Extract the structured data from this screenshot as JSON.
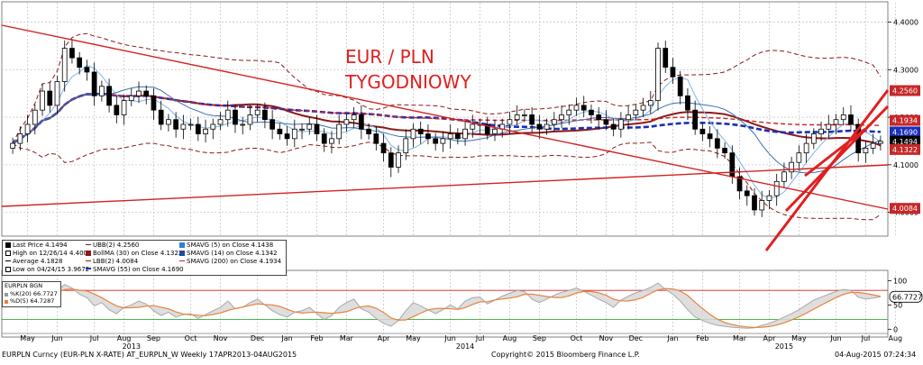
{
  "chart_data": {
    "type": "candlestick",
    "title": "EUR / PLN",
    "subtitle": "TYGODNIOWY",
    "x_months": [
      {
        "label": "May",
        "week": 2
      },
      {
        "label": "Jun",
        "week": 6
      },
      {
        "label": "Jul",
        "week": 11
      },
      {
        "label": "Aug",
        "week": 15
      },
      {
        "label": "Sep",
        "week": 19
      },
      {
        "label": "Oct",
        "week": 24
      },
      {
        "label": "Nov",
        "week": 28
      },
      {
        "label": "Dec",
        "week": 33
      },
      {
        "label": "Jan",
        "week": 37
      },
      {
        "label": "Feb",
        "week": 41
      },
      {
        "label": "Mar",
        "week": 45
      },
      {
        "label": "Apr",
        "week": 50
      },
      {
        "label": "May",
        "week": 54
      },
      {
        "label": "Jun",
        "week": 59
      },
      {
        "label": "Jul",
        "week": 63
      },
      {
        "label": "Aug",
        "week": 67
      },
      {
        "label": "Sep",
        "week": 71
      },
      {
        "label": "Oct",
        "week": 76
      },
      {
        "label": "Nov",
        "week": 80
      },
      {
        "label": "Dec",
        "week": 84
      },
      {
        "label": "Jan",
        "week": 89
      },
      {
        "label": "Feb",
        "week": 93
      },
      {
        "label": "Mar",
        "week": 98
      },
      {
        "label": "Apr",
        "week": 102
      },
      {
        "label": "May",
        "week": 106
      },
      {
        "label": "Jun",
        "week": 111
      },
      {
        "label": "Jul",
        "week": 115
      },
      {
        "label": "Aug",
        "week": 119
      }
    ],
    "x_years": [
      {
        "label": "2013",
        "week": 16
      },
      {
        "label": "2014",
        "week": 61
      },
      {
        "label": "2015",
        "week": 104
      }
    ],
    "y_price_range": [
      3.95,
      4.42
    ],
    "y_price_ticks": [
      4.0,
      4.1,
      4.2,
      4.3,
      4.4
    ],
    "y_price_tick_labels": [
      "4.0000",
      "4.1000",
      "4.2000",
      "4.3000",
      "4.4000"
    ],
    "y_osc_range": [
      -5,
      110
    ],
    "y_osc_ticks": [
      0,
      50,
      100
    ],
    "y_osc_tick_labels": [
      "0",
      "50",
      "100"
    ],
    "closes": [
      4.145,
      4.165,
      4.185,
      4.215,
      4.255,
      4.225,
      4.275,
      4.345,
      4.325,
      4.305,
      4.295,
      4.245,
      4.265,
      4.225,
      4.205,
      4.235,
      4.245,
      4.255,
      4.245,
      4.215,
      4.185,
      4.195,
      4.175,
      4.185,
      4.185,
      4.165,
      4.175,
      4.185,
      4.195,
      4.215,
      4.185,
      4.185,
      4.205,
      4.215,
      4.195,
      4.175,
      4.165,
      4.155,
      4.175,
      4.175,
      4.185,
      4.165,
      4.145,
      4.155,
      4.185,
      4.195,
      4.205,
      4.175,
      4.165,
      4.145,
      4.125,
      4.095,
      4.125,
      4.155,
      4.175,
      4.165,
      4.155,
      4.145,
      4.155,
      4.165,
      4.155,
      4.175,
      4.185,
      4.185,
      4.165,
      4.175,
      4.185,
      4.195,
      4.205,
      4.205,
      4.185,
      4.175,
      4.185,
      4.195,
      4.205,
      4.215,
      4.225,
      4.215,
      4.205,
      4.195,
      4.185,
      4.175,
      4.195,
      4.205,
      4.215,
      4.225,
      4.235,
      4.345,
      4.305,
      4.285,
      4.245,
      4.215,
      4.175,
      4.165,
      4.155,
      4.135,
      4.125,
      4.075,
      4.045,
      4.035,
      4.005,
      4.025,
      4.035,
      4.065,
      4.085,
      4.105,
      4.125,
      4.145,
      4.165,
      4.175,
      4.185,
      4.195,
      4.205,
      4.185,
      4.125,
      4.135,
      4.145,
      4.1494
    ],
    "series": [
      {
        "name": "Last Price",
        "value": "4.1494",
        "color": "#000000"
      },
      {
        "name": "High on 12/26/14",
        "value": "4.4000",
        "color": "#000000"
      },
      {
        "name": "Average",
        "value": "4.1828",
        "color": "#000000"
      },
      {
        "name": "Low on 04/24/15",
        "value": "3.9672",
        "color": "#000000"
      },
      {
        "name": "UBB(2)",
        "value": "4.2560",
        "color": "#8b1a1a"
      },
      {
        "name": "BollMA (30) on Close",
        "value": "4.1322",
        "color": "#8b1a1a"
      },
      {
        "name": "LBB(2)",
        "value": "4.0084",
        "color": "#8b1a1a"
      },
      {
        "name": "SMAVG (55) on Close",
        "value": "4.1690",
        "color": "#1a2fb8"
      },
      {
        "name": "SMAVG (5) on Close",
        "value": "4.1438",
        "color": "#2f7fd0"
      },
      {
        "name": "SMAVG (14) on Close",
        "value": "4.1342",
        "color": "#1a4fa0"
      },
      {
        "name": "SMAVG (200) on Close",
        "value": "4.1934",
        "color": "#cc2020"
      }
    ],
    "price_labels": [
      {
        "text": "4.2560",
        "value": 4.256,
        "bg": "#c62828",
        "fg": "#ffffff"
      },
      {
        "text": "4.1934",
        "value": 4.1934,
        "bg": "#c62828",
        "fg": "#ffffff"
      },
      {
        "text": "4.1690",
        "value": 4.169,
        "bg": "#1a2fb8",
        "fg": "#ffffff"
      },
      {
        "text": "4.1494",
        "value": 4.1494,
        "bg": "#000000",
        "fg": "#ffffff"
      },
      {
        "text": "4.1322",
        "value": 4.1322,
        "bg": "#c62828",
        "fg": "#ffffff"
      },
      {
        "text": "4.0084",
        "value": 4.0084,
        "bg": "#c62828",
        "fg": "#ffffff"
      }
    ],
    "oscillator": {
      "security": "EURPLN BGN",
      "k_label": "%K(20)",
      "k_value": "66.7727",
      "d_label": "%D(5)",
      "d_value": "64.7287",
      "last_label": "66.7727",
      "levels": [
        80,
        20
      ],
      "k": [
        55,
        62,
        70,
        78,
        85,
        72,
        80,
        92,
        85,
        72,
        65,
        48,
        55,
        40,
        32,
        45,
        50,
        58,
        52,
        38,
        28,
        35,
        25,
        30,
        32,
        22,
        30,
        38,
        45,
        58,
        42,
        45,
        55,
        62,
        50,
        38,
        30,
        25,
        35,
        38,
        45,
        32,
        20,
        28,
        45,
        55,
        62,
        42,
        35,
        22,
        12,
        6,
        18,
        38,
        55,
        48,
        40,
        32,
        40,
        50,
        42,
        58,
        65,
        66,
        52,
        60,
        68,
        74,
        80,
        78,
        62,
        55,
        62,
        70,
        76,
        80,
        85,
        78,
        70,
        62,
        55,
        45,
        60,
        68,
        75,
        80,
        86,
        95,
        82,
        72,
        58,
        40,
        25,
        18,
        12,
        8,
        6,
        4,
        3,
        2,
        3,
        8,
        12,
        18,
        25,
        32,
        40,
        50,
        60,
        66,
        72,
        78,
        82,
        80,
        66,
        62,
        64,
        66.77
      ]
    },
    "source_text": "EURPLN Curncy (EUR-PLN X-RATE) AT_EURPLN_W  Weekly 17APR2013-04AUG2015",
    "copyright": "Copyright© 2015 Bloomberg Finance L.P.",
    "timestamp": "04-Aug-2015 07:24:34"
  }
}
